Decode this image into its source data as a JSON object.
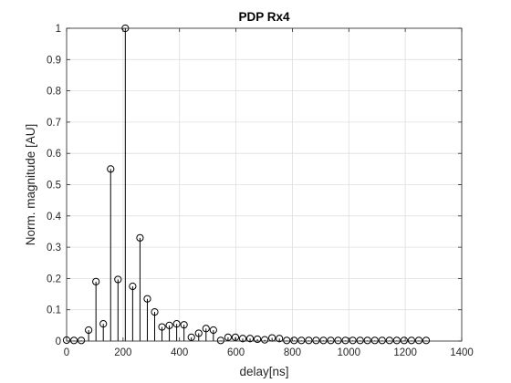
{
  "chart_data": {
    "type": "stem",
    "title": "PDP Rx4",
    "xlabel": "delay[ns]",
    "ylabel": "Norm. magnitude [AU]",
    "xlim": [
      0,
      1400
    ],
    "ylim": [
      0,
      1
    ],
    "xticks": [
      0,
      200,
      400,
      600,
      800,
      1000,
      1200,
      1400
    ],
    "yticks": [
      0,
      0.1,
      0.2,
      0.3,
      0.4,
      0.5,
      0.6,
      0.7,
      0.8,
      0.9,
      1
    ],
    "xtick_labels": [
      "0",
      "200",
      "400",
      "600",
      "800",
      "1000",
      "1200",
      "1400"
    ],
    "ytick_labels": [
      "0",
      "0.1",
      "0.2",
      "0.3",
      "0.4",
      "0.5",
      "0.6",
      "0.7",
      "0.8",
      "0.9",
      "1"
    ],
    "grid": true,
    "marker": "open-circle",
    "line_color": "#000000",
    "x": [
      0,
      26,
      52,
      78,
      104,
      130,
      156,
      182,
      208,
      234,
      260,
      286,
      312,
      338,
      364,
      390,
      416,
      442,
      468,
      494,
      520,
      546,
      572,
      598,
      624,
      650,
      676,
      702,
      728,
      754,
      780,
      806,
      832,
      858,
      884,
      910,
      936,
      962,
      988,
      1014,
      1040,
      1066,
      1092,
      1118,
      1144,
      1170,
      1196,
      1222,
      1248,
      1274
    ],
    "y": [
      0.003,
      0.002,
      0.002,
      0.035,
      0.19,
      0.055,
      0.55,
      0.197,
      1.0,
      0.175,
      0.33,
      0.135,
      0.093,
      0.045,
      0.05,
      0.055,
      0.052,
      0.012,
      0.025,
      0.04,
      0.035,
      0.002,
      0.012,
      0.012,
      0.008,
      0.008,
      0.006,
      0.004,
      0.01,
      0.008,
      0.002,
      0.002,
      0.002,
      0.002,
      0.002,
      0.002,
      0.002,
      0.002,
      0.002,
      0.002,
      0.002,
      0.002,
      0.002,
      0.002,
      0.002,
      0.002,
      0.002,
      0.002,
      0.002,
      0.002
    ]
  }
}
